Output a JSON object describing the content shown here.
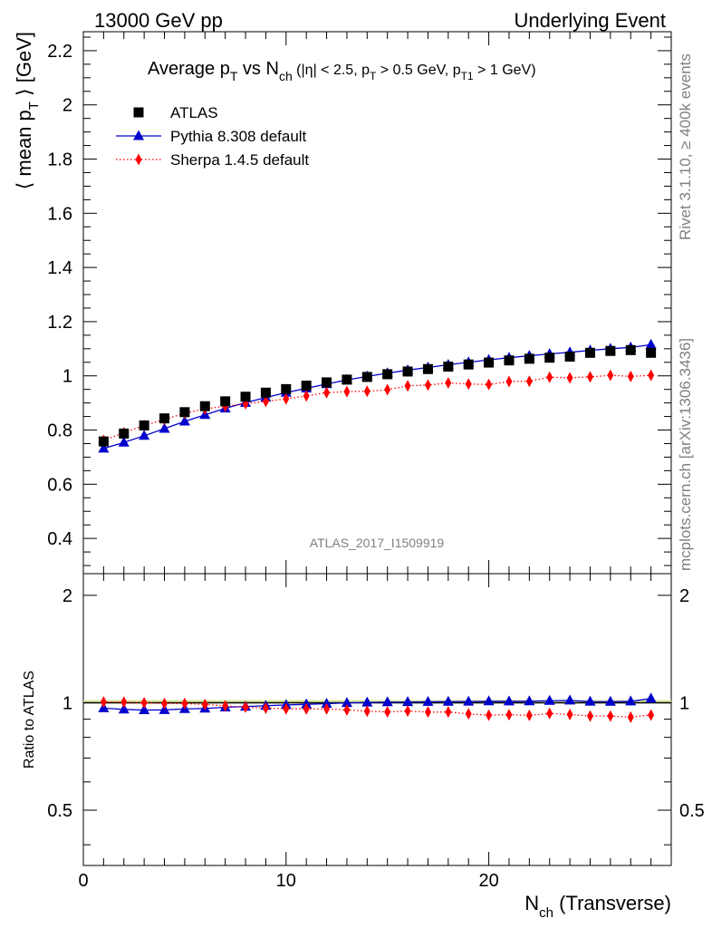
{
  "header": {
    "left": "13000 GeV pp",
    "right": "Underlying Event"
  },
  "side_labels": {
    "rivet": "Rivet 3.1.10, ≥ 400k events",
    "mcplots": "mcplots.cern.ch [arXiv:1306.3436]"
  },
  "chart_data": [
    {
      "type": "scatter",
      "panel": "main",
      "title": {
        "t1": "Average p",
        "t1_sub": "T",
        "t2": " vs N",
        "t2_sub": "ch",
        "t3": " (|η| < 2.5, p",
        "t3_sub": "T",
        "t4": " > 0.5 GeV, p",
        "t4_sub": "T1",
        "t5": " > 1 GeV)"
      },
      "ylabel": {
        "pre": "⟨ mean p",
        "sub": "T",
        "post": " ⟩ [GeV]"
      },
      "analysis_label": "ATLAS_2017_I1509919",
      "xlim": [
        0,
        29
      ],
      "ylim": [
        0.27,
        2.27
      ],
      "y_ticks": [
        "0.4",
        "0.6",
        "0.8",
        "1",
        "1.2",
        "1.4",
        "1.6",
        "1.8",
        "2",
        "2.2"
      ],
      "x": [
        1,
        2,
        3,
        4,
        5,
        6,
        7,
        8,
        9,
        10,
        11,
        12,
        13,
        14,
        15,
        16,
        17,
        18,
        19,
        20,
        21,
        22,
        23,
        24,
        25,
        26,
        27,
        28
      ],
      "series": [
        {
          "name": "ATLAS",
          "color": "#000000",
          "marker": "square",
          "values": [
            0.758,
            0.787,
            0.817,
            0.843,
            0.866,
            0.888,
            0.906,
            0.923,
            0.938,
            0.951,
            0.964,
            0.976,
            0.986,
            0.996,
            1.006,
            1.016,
            1.025,
            1.034,
            1.042,
            1.049,
            1.057,
            1.063,
            1.067,
            1.071,
            1.085,
            1.092,
            1.095,
            1.085
          ]
        },
        {
          "name": "Pythia 8.308 default",
          "color": "#0000cc",
          "marker": "triangle",
          "line": "solid",
          "values": [
            0.732,
            0.754,
            0.779,
            0.805,
            0.832,
            0.856,
            0.88,
            0.901,
            0.92,
            0.938,
            0.954,
            0.97,
            0.985,
            0.998,
            1.01,
            1.021,
            1.031,
            1.041,
            1.05,
            1.059,
            1.067,
            1.074,
            1.081,
            1.087,
            1.094,
            1.1,
            1.105,
            1.115
          ]
        },
        {
          "name": "Sherpa 1.4.5 default",
          "color": "#ff0000",
          "marker": "diamond",
          "line": "dotted",
          "values": [
            0.762,
            0.79,
            0.817,
            0.839,
            0.862,
            0.878,
            0.888,
            0.897,
            0.906,
            0.915,
            0.926,
            0.938,
            0.942,
            0.943,
            0.949,
            0.963,
            0.966,
            0.974,
            0.97,
            0.968,
            0.979,
            0.98,
            0.995,
            0.993,
            0.996,
            1.002,
            0.998,
            1.002
          ]
        }
      ]
    },
    {
      "type": "scatter",
      "panel": "ratio",
      "ylabel": "Ratio to ATLAS",
      "xlabel": {
        "pre": "N",
        "sub": "ch",
        "post": " (Transverse)"
      },
      "xlim": [
        0,
        29
      ],
      "x_ticks": [
        "0",
        "10",
        "20"
      ],
      "y_scale": "log",
      "ylim": [
        0.35,
        2.3
      ],
      "y_ticks": [
        "0.5",
        "1",
        "2"
      ],
      "reference_line": {
        "value": 1,
        "color": "#00aa00"
      },
      "x": [
        1,
        2,
        3,
        4,
        5,
        6,
        7,
        8,
        9,
        10,
        11,
        12,
        13,
        14,
        15,
        16,
        17,
        18,
        19,
        20,
        21,
        22,
        23,
        24,
        25,
        26,
        27,
        28
      ],
      "series": [
        {
          "name": "Pythia 8.308 default",
          "color": "#0000cc",
          "marker": "triangle",
          "line": "solid",
          "values": [
            0.966,
            0.958,
            0.954,
            0.955,
            0.961,
            0.964,
            0.971,
            0.976,
            0.981,
            0.986,
            0.99,
            0.994,
            0.999,
            1.002,
            1.004,
            1.005,
            1.006,
            1.007,
            1.008,
            1.01,
            1.009,
            1.01,
            1.013,
            1.015,
            1.008,
            1.007,
            1.009,
            1.028
          ]
        },
        {
          "name": "Sherpa 1.4.5 default",
          "color": "#ff0000",
          "marker": "diamond",
          "line": "dotted",
          "values": [
            1.005,
            1.004,
            1.0,
            0.995,
            0.995,
            0.989,
            0.98,
            0.972,
            0.966,
            0.962,
            0.961,
            0.961,
            0.955,
            0.947,
            0.943,
            0.948,
            0.942,
            0.942,
            0.931,
            0.923,
            0.926,
            0.922,
            0.933,
            0.927,
            0.918,
            0.918,
            0.911,
            0.924
          ]
        }
      ]
    }
  ]
}
